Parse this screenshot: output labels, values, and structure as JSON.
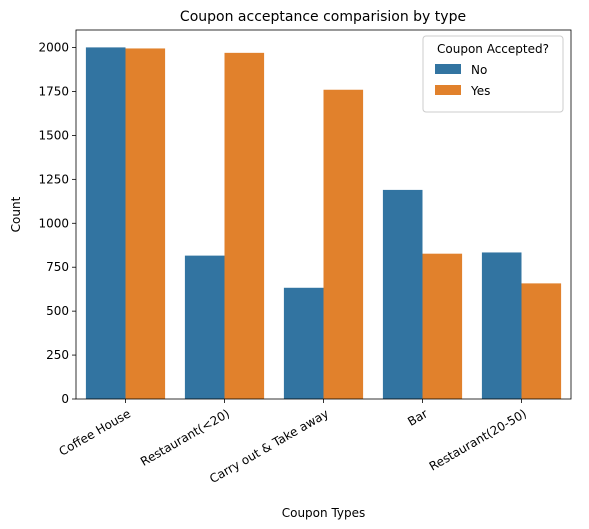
{
  "chart_data": {
    "type": "bar",
    "title": "Coupon acceptance comparision by type",
    "xlabel": "Coupon Types",
    "ylabel": "Count",
    "categories": [
      "Coffee House",
      "Restaurant(<20)",
      "Carry out & Take away",
      "Bar",
      "Restaurant(20-50)"
    ],
    "series": [
      {
        "name": "No",
        "color": "#3274a1",
        "values": [
          2001,
          816,
          633,
          1190,
          834
        ]
      },
      {
        "name": "Yes",
        "color": "#e1812c",
        "values": [
          1995,
          1970,
          1760,
          827,
          658
        ]
      }
    ],
    "ylim": [
      0,
      2100
    ],
    "yticks": [
      0,
      250,
      500,
      750,
      1000,
      1250,
      1500,
      1750,
      2000
    ],
    "legend": {
      "title": "Coupon Accepted?",
      "position": "top-right"
    },
    "grid": false
  }
}
